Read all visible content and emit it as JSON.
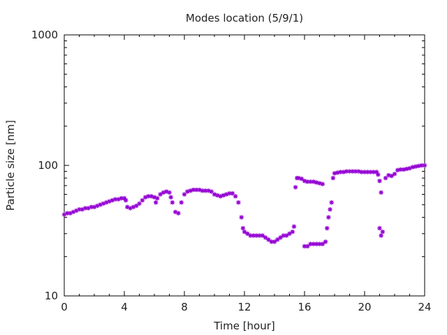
{
  "chart_data": {
    "type": "scatter",
    "title": "Modes location (5/9/1)",
    "xlabel": "Time [hour]",
    "ylabel": "Particle size [nm]",
    "xlim": [
      0,
      24
    ],
    "ylim": [
      10,
      1000
    ],
    "yscale": "log",
    "grid": false,
    "legend": "none",
    "marker_color": "#9400d3",
    "x_ticks": [
      0,
      4,
      8,
      12,
      16,
      20,
      24
    ],
    "x_tick_labels": [
      "0",
      "4",
      "8",
      "12",
      "16",
      "20",
      "24"
    ],
    "y_ticks": [
      10,
      100,
      1000
    ],
    "y_tick_labels": [
      "10",
      "100",
      "1000"
    ],
    "points": [
      [
        0.0,
        42
      ],
      [
        0.2,
        43
      ],
      [
        0.4,
        43
      ],
      [
        0.6,
        44
      ],
      [
        0.8,
        45
      ],
      [
        1.0,
        46
      ],
      [
        1.2,
        46
      ],
      [
        1.4,
        47
      ],
      [
        1.6,
        47
      ],
      [
        1.8,
        48
      ],
      [
        2.0,
        48
      ],
      [
        2.2,
        49
      ],
      [
        2.4,
        50
      ],
      [
        2.6,
        51
      ],
      [
        2.8,
        52
      ],
      [
        3.0,
        53
      ],
      [
        3.2,
        54
      ],
      [
        3.4,
        55
      ],
      [
        3.6,
        55
      ],
      [
        3.8,
        56
      ],
      [
        4.0,
        56
      ],
      [
        4.1,
        54
      ],
      [
        4.2,
        48
      ],
      [
        4.4,
        47
      ],
      [
        4.6,
        48
      ],
      [
        4.8,
        49
      ],
      [
        5.0,
        51
      ],
      [
        5.2,
        54
      ],
      [
        5.4,
        57
      ],
      [
        5.6,
        58
      ],
      [
        5.8,
        58
      ],
      [
        6.0,
        57
      ],
      [
        6.1,
        52
      ],
      [
        6.2,
        56
      ],
      [
        6.4,
        60
      ],
      [
        6.6,
        62
      ],
      [
        6.8,
        63
      ],
      [
        7.0,
        62
      ],
      [
        7.1,
        57
      ],
      [
        7.2,
        52
      ],
      [
        7.4,
        44
      ],
      [
        7.6,
        43
      ],
      [
        7.8,
        52
      ],
      [
        8.0,
        60
      ],
      [
        8.2,
        63
      ],
      [
        8.4,
        64
      ],
      [
        8.6,
        65
      ],
      [
        8.8,
        65
      ],
      [
        9.0,
        65
      ],
      [
        9.2,
        64
      ],
      [
        9.4,
        64
      ],
      [
        9.6,
        64
      ],
      [
        9.8,
        63
      ],
      [
        10.0,
        60
      ],
      [
        10.2,
        59
      ],
      [
        10.4,
        58
      ],
      [
        10.6,
        59
      ],
      [
        10.8,
        60
      ],
      [
        11.0,
        61
      ],
      [
        11.2,
        61
      ],
      [
        11.4,
        58
      ],
      [
        11.6,
        52
      ],
      [
        11.8,
        40
      ],
      [
        11.9,
        33
      ],
      [
        12.0,
        31
      ],
      [
        12.2,
        30
      ],
      [
        12.4,
        29
      ],
      [
        12.6,
        29
      ],
      [
        12.8,
        29
      ],
      [
        13.0,
        29
      ],
      [
        13.2,
        29
      ],
      [
        13.4,
        28
      ],
      [
        13.6,
        27
      ],
      [
        13.8,
        26
      ],
      [
        14.0,
        26
      ],
      [
        14.2,
        27
      ],
      [
        14.4,
        28
      ],
      [
        14.6,
        29
      ],
      [
        14.8,
        29
      ],
      [
        15.0,
        30
      ],
      [
        15.2,
        31
      ],
      [
        15.3,
        34
      ],
      [
        15.4,
        68
      ],
      [
        15.5,
        80
      ],
      [
        15.6,
        80
      ],
      [
        15.8,
        79
      ],
      [
        16.0,
        76
      ],
      [
        16.2,
        75
      ],
      [
        16.4,
        75
      ],
      [
        16.6,
        75
      ],
      [
        16.8,
        74
      ],
      [
        17.0,
        73
      ],
      [
        17.2,
        72
      ],
      [
        16.0,
        24
      ],
      [
        16.2,
        24
      ],
      [
        16.4,
        25
      ],
      [
        16.6,
        25
      ],
      [
        16.8,
        25
      ],
      [
        17.0,
        25
      ],
      [
        17.2,
        25
      ],
      [
        17.4,
        26
      ],
      [
        17.5,
        33
      ],
      [
        17.6,
        40
      ],
      [
        17.7,
        46
      ],
      [
        17.8,
        52
      ],
      [
        17.9,
        80
      ],
      [
        18.0,
        87
      ],
      [
        18.2,
        88
      ],
      [
        18.4,
        89
      ],
      [
        18.6,
        89
      ],
      [
        18.8,
        90
      ],
      [
        19.0,
        90
      ],
      [
        19.2,
        90
      ],
      [
        19.4,
        90
      ],
      [
        19.6,
        90
      ],
      [
        19.8,
        89
      ],
      [
        20.0,
        89
      ],
      [
        20.2,
        89
      ],
      [
        20.4,
        89
      ],
      [
        20.6,
        89
      ],
      [
        20.8,
        89
      ],
      [
        20.9,
        85
      ],
      [
        21.0,
        76
      ],
      [
        21.1,
        62
      ],
      [
        21.0,
        33
      ],
      [
        21.1,
        29
      ],
      [
        21.2,
        31
      ],
      [
        21.4,
        80
      ],
      [
        21.6,
        84
      ],
      [
        21.8,
        83
      ],
      [
        22.0,
        86
      ],
      [
        22.2,
        92
      ],
      [
        22.4,
        93
      ],
      [
        22.6,
        93
      ],
      [
        22.8,
        94
      ],
      [
        23.0,
        95
      ],
      [
        23.2,
        97
      ],
      [
        23.4,
        98
      ],
      [
        23.6,
        99
      ],
      [
        23.8,
        100
      ],
      [
        24.0,
        100
      ]
    ]
  }
}
